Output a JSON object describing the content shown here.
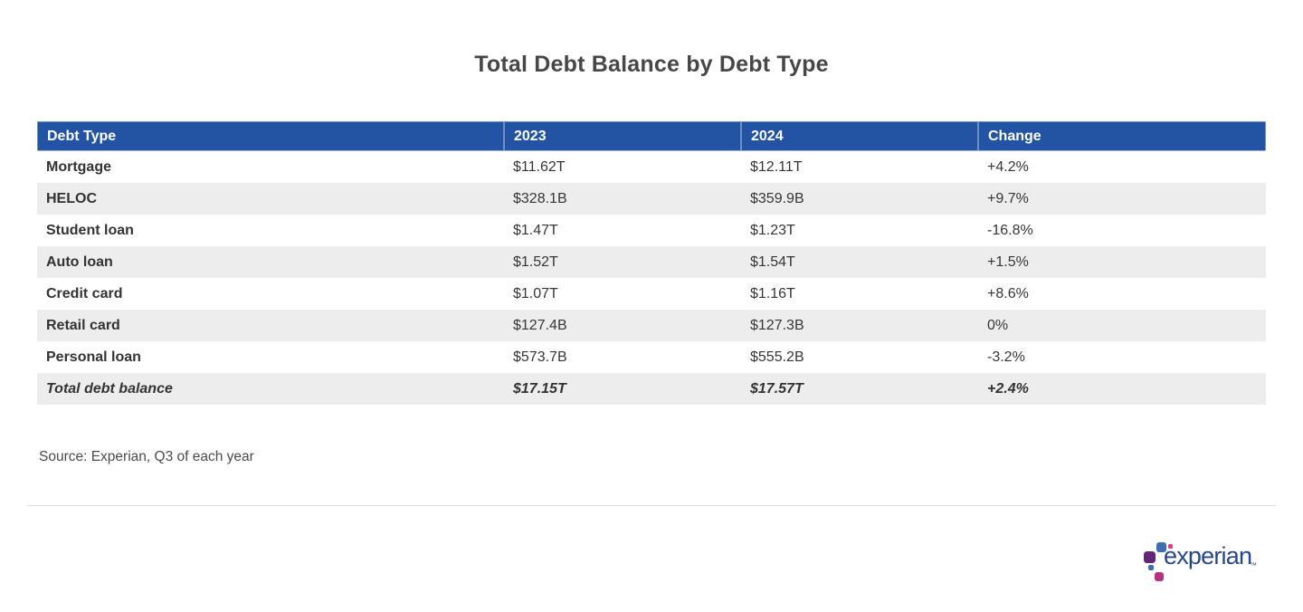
{
  "chart_data": {
    "type": "table",
    "title": "Total Debt Balance by Debt Type",
    "columns": [
      "Debt Type",
      "2023",
      "2024",
      "Change"
    ],
    "rows": [
      [
        "Mortgage",
        "$11.62T",
        "$12.11T",
        "+4.2%"
      ],
      [
        "HELOC",
        "$328.1B",
        "$359.9B",
        "+9.7%"
      ],
      [
        "Student loan",
        "$1.47T",
        "$1.23T",
        "-16.8%"
      ],
      [
        "Auto loan",
        "$1.52T",
        "$1.54T",
        "+1.5%"
      ],
      [
        "Credit card",
        "$1.07T",
        "$1.16T",
        "+8.6%"
      ],
      [
        "Retail card",
        "$127.4B",
        "$127.3B",
        "0%"
      ],
      [
        "Personal loan",
        "$573.7B",
        "$555.2B",
        "-3.2%"
      ],
      [
        "Total debt balance",
        "$17.15T",
        "$17.57T",
        "+2.4%"
      ]
    ],
    "total_row_index": 7,
    "layout": {
      "header_fill": "#2254A3",
      "alt_row_fill": "#EDEDEE",
      "grid": "off"
    }
  },
  "source": "Source: Experian, Q3 of each year",
  "logo": {
    "wordmark": "experian",
    "trademark": "™",
    "colors": {
      "wordmark_blue": "#26478D",
      "light_blue": "#406EB3",
      "purple": "#632678",
      "magenta": "#BA2F7D",
      "pink": "#E63888"
    }
  },
  "colors": {
    "header_blue": "#2254A3",
    "alt_row_gray": "#EDEDEE",
    "title_gray": "#474747",
    "body_text": "#363636"
  }
}
